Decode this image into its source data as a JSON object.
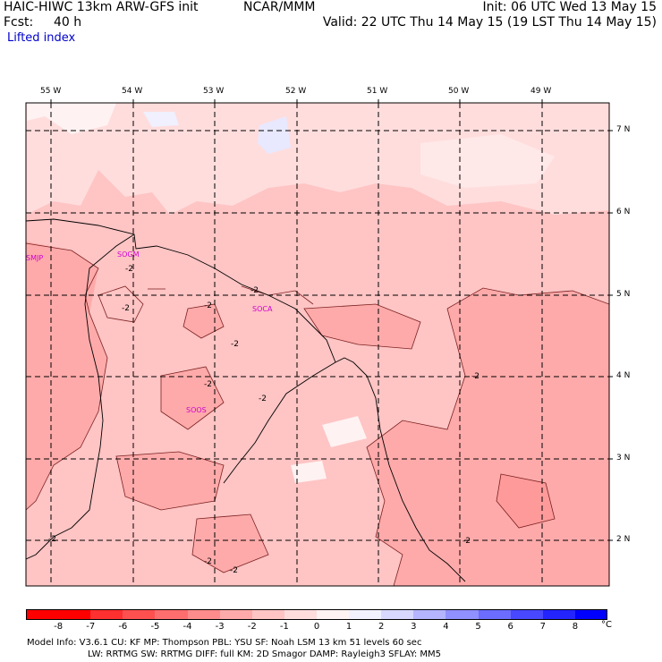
{
  "header": {
    "model": "HAIC-HIWC 13km ARW-GFS init",
    "agency": "NCAR/MMM",
    "init": "Init: 06 UTC Wed 13 May 15",
    "fcst_label": "Fcst:",
    "fcst_value": "40 h",
    "valid": "Valid: 22 UTC Thu 14 May 15 (19 LST Thu 14 May 15)",
    "field": "Lifted index"
  },
  "map": {
    "lon_labels": [
      "55 W",
      "54 W",
      "53 W",
      "52 W",
      "51 W",
      "50 W",
      "49 W"
    ],
    "lat_labels": [
      "7 N",
      "6 N",
      "5 N",
      "4 N",
      "3 N",
      "2 N"
    ],
    "stations": [
      "SMJP",
      "SOGM",
      "SOCA",
      "SOOS"
    ],
    "contour_labels": [
      "-2",
      "-2",
      "-2",
      "-2",
      "-2",
      "-2",
      "-2",
      "-2",
      "-2",
      "-2",
      "-2",
      "-2"
    ]
  },
  "colorbar": {
    "ticks": [
      "-8",
      "-7",
      "-6",
      "-5",
      "-4",
      "-3",
      "-2",
      "-1",
      "0",
      "1",
      "2",
      "3",
      "4",
      "5",
      "6",
      "7",
      "8"
    ],
    "unit": "°C",
    "colors": [
      "#ff0000",
      "#ff3030",
      "#ff5050",
      "#ff6e6e",
      "#ff8c8c",
      "#ffaaaa",
      "#ffc4c4",
      "#ffdddd",
      "#fff2f2",
      "#f2f2ff",
      "#d8d8ff",
      "#b4b4ff",
      "#9090ff",
      "#6c6cff",
      "#4848ff",
      "#2424ff",
      "#0000ff"
    ]
  },
  "footer": {
    "line1": "Model Info: V3.6.1     CU: KF      MP: Thompson      PBL: YSU       SF: Noah LSM      13 km    51 levels   60 sec",
    "line2": "LW: RRTMG    SW: RRTMG   DIFF: full    KM: 2D Smagor DAMP: Rayleigh3   SFLAY: MM5"
  }
}
